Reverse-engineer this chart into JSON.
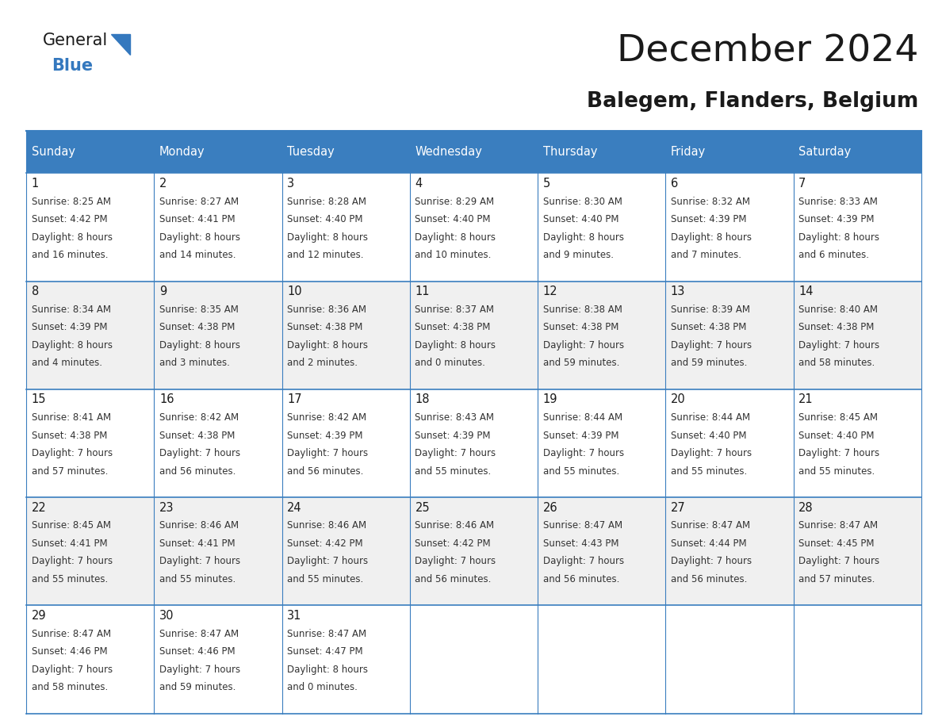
{
  "title": "December 2024",
  "subtitle": "Balegem, Flanders, Belgium",
  "header_color": "#3a7ebf",
  "header_text_color": "#ffffff",
  "border_color": "#3a7ebf",
  "day_headers": [
    "Sunday",
    "Monday",
    "Tuesday",
    "Wednesday",
    "Thursday",
    "Friday",
    "Saturday"
  ],
  "days": [
    {
      "day": 1,
      "col": 0,
      "row": 0,
      "sunrise": "8:25 AM",
      "sunset": "4:42 PM",
      "daylight_h": "8 hours",
      "daylight_m": "and 16 minutes."
    },
    {
      "day": 2,
      "col": 1,
      "row": 0,
      "sunrise": "8:27 AM",
      "sunset": "4:41 PM",
      "daylight_h": "8 hours",
      "daylight_m": "and 14 minutes."
    },
    {
      "day": 3,
      "col": 2,
      "row": 0,
      "sunrise": "8:28 AM",
      "sunset": "4:40 PM",
      "daylight_h": "8 hours",
      "daylight_m": "and 12 minutes."
    },
    {
      "day": 4,
      "col": 3,
      "row": 0,
      "sunrise": "8:29 AM",
      "sunset": "4:40 PM",
      "daylight_h": "8 hours",
      "daylight_m": "and 10 minutes."
    },
    {
      "day": 5,
      "col": 4,
      "row": 0,
      "sunrise": "8:30 AM",
      "sunset": "4:40 PM",
      "daylight_h": "8 hours",
      "daylight_m": "and 9 minutes."
    },
    {
      "day": 6,
      "col": 5,
      "row": 0,
      "sunrise": "8:32 AM",
      "sunset": "4:39 PM",
      "daylight_h": "8 hours",
      "daylight_m": "and 7 minutes."
    },
    {
      "day": 7,
      "col": 6,
      "row": 0,
      "sunrise": "8:33 AM",
      "sunset": "4:39 PM",
      "daylight_h": "8 hours",
      "daylight_m": "and 6 minutes."
    },
    {
      "day": 8,
      "col": 0,
      "row": 1,
      "sunrise": "8:34 AM",
      "sunset": "4:39 PM",
      "daylight_h": "8 hours",
      "daylight_m": "and 4 minutes."
    },
    {
      "day": 9,
      "col": 1,
      "row": 1,
      "sunrise": "8:35 AM",
      "sunset": "4:38 PM",
      "daylight_h": "8 hours",
      "daylight_m": "and 3 minutes."
    },
    {
      "day": 10,
      "col": 2,
      "row": 1,
      "sunrise": "8:36 AM",
      "sunset": "4:38 PM",
      "daylight_h": "8 hours",
      "daylight_m": "and 2 minutes."
    },
    {
      "day": 11,
      "col": 3,
      "row": 1,
      "sunrise": "8:37 AM",
      "sunset": "4:38 PM",
      "daylight_h": "8 hours",
      "daylight_m": "and 0 minutes."
    },
    {
      "day": 12,
      "col": 4,
      "row": 1,
      "sunrise": "8:38 AM",
      "sunset": "4:38 PM",
      "daylight_h": "7 hours",
      "daylight_m": "and 59 minutes."
    },
    {
      "day": 13,
      "col": 5,
      "row": 1,
      "sunrise": "8:39 AM",
      "sunset": "4:38 PM",
      "daylight_h": "7 hours",
      "daylight_m": "and 59 minutes."
    },
    {
      "day": 14,
      "col": 6,
      "row": 1,
      "sunrise": "8:40 AM",
      "sunset": "4:38 PM",
      "daylight_h": "7 hours",
      "daylight_m": "and 58 minutes."
    },
    {
      "day": 15,
      "col": 0,
      "row": 2,
      "sunrise": "8:41 AM",
      "sunset": "4:38 PM",
      "daylight_h": "7 hours",
      "daylight_m": "and 57 minutes."
    },
    {
      "day": 16,
      "col": 1,
      "row": 2,
      "sunrise": "8:42 AM",
      "sunset": "4:38 PM",
      "daylight_h": "7 hours",
      "daylight_m": "and 56 minutes."
    },
    {
      "day": 17,
      "col": 2,
      "row": 2,
      "sunrise": "8:42 AM",
      "sunset": "4:39 PM",
      "daylight_h": "7 hours",
      "daylight_m": "and 56 minutes."
    },
    {
      "day": 18,
      "col": 3,
      "row": 2,
      "sunrise": "8:43 AM",
      "sunset": "4:39 PM",
      "daylight_h": "7 hours",
      "daylight_m": "and 55 minutes."
    },
    {
      "day": 19,
      "col": 4,
      "row": 2,
      "sunrise": "8:44 AM",
      "sunset": "4:39 PM",
      "daylight_h": "7 hours",
      "daylight_m": "and 55 minutes."
    },
    {
      "day": 20,
      "col": 5,
      "row": 2,
      "sunrise": "8:44 AM",
      "sunset": "4:40 PM",
      "daylight_h": "7 hours",
      "daylight_m": "and 55 minutes."
    },
    {
      "day": 21,
      "col": 6,
      "row": 2,
      "sunrise": "8:45 AM",
      "sunset": "4:40 PM",
      "daylight_h": "7 hours",
      "daylight_m": "and 55 minutes."
    },
    {
      "day": 22,
      "col": 0,
      "row": 3,
      "sunrise": "8:45 AM",
      "sunset": "4:41 PM",
      "daylight_h": "7 hours",
      "daylight_m": "and 55 minutes."
    },
    {
      "day": 23,
      "col": 1,
      "row": 3,
      "sunrise": "8:46 AM",
      "sunset": "4:41 PM",
      "daylight_h": "7 hours",
      "daylight_m": "and 55 minutes."
    },
    {
      "day": 24,
      "col": 2,
      "row": 3,
      "sunrise": "8:46 AM",
      "sunset": "4:42 PM",
      "daylight_h": "7 hours",
      "daylight_m": "and 55 minutes."
    },
    {
      "day": 25,
      "col": 3,
      "row": 3,
      "sunrise": "8:46 AM",
      "sunset": "4:42 PM",
      "daylight_h": "7 hours",
      "daylight_m": "and 56 minutes."
    },
    {
      "day": 26,
      "col": 4,
      "row": 3,
      "sunrise": "8:47 AM",
      "sunset": "4:43 PM",
      "daylight_h": "7 hours",
      "daylight_m": "and 56 minutes."
    },
    {
      "day": 27,
      "col": 5,
      "row": 3,
      "sunrise": "8:47 AM",
      "sunset": "4:44 PM",
      "daylight_h": "7 hours",
      "daylight_m": "and 56 minutes."
    },
    {
      "day": 28,
      "col": 6,
      "row": 3,
      "sunrise": "8:47 AM",
      "sunset": "4:45 PM",
      "daylight_h": "7 hours",
      "daylight_m": "and 57 minutes."
    },
    {
      "day": 29,
      "col": 0,
      "row": 4,
      "sunrise": "8:47 AM",
      "sunset": "4:46 PM",
      "daylight_h": "7 hours",
      "daylight_m": "and 58 minutes."
    },
    {
      "day": 30,
      "col": 1,
      "row": 4,
      "sunrise": "8:47 AM",
      "sunset": "4:46 PM",
      "daylight_h": "7 hours",
      "daylight_m": "and 59 minutes."
    },
    {
      "day": 31,
      "col": 2,
      "row": 4,
      "sunrise": "8:47 AM",
      "sunset": "4:47 PM",
      "daylight_h": "8 hours",
      "daylight_m": "and 0 minutes."
    }
  ],
  "logo_color_general": "#1a1a1a",
  "logo_color_blue": "#3478be",
  "logo_triangle_color": "#3478be"
}
